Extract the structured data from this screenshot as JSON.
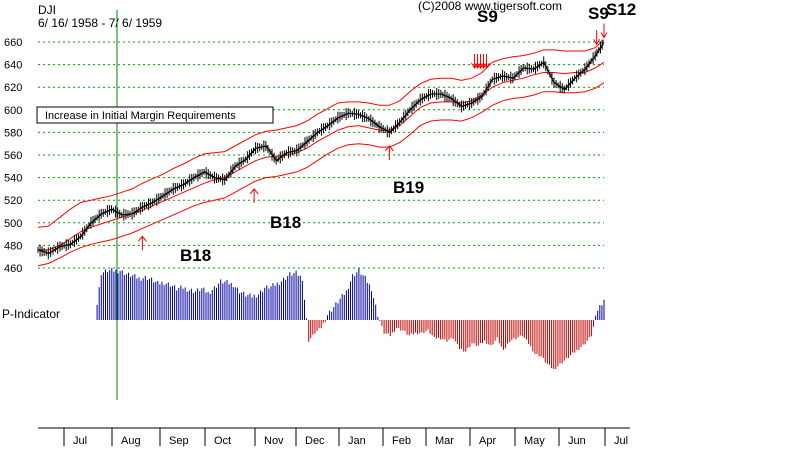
{
  "chart_data": {
    "type": "line",
    "title": "DJI",
    "subtitle": "6/ 16/ 1958 - 7/ 6/ 1959",
    "copyright": "(C)2008   www.tigersoft.com",
    "indicator_label": "P-Indicator",
    "annotation": "Increase in Initial Margin Requirements",
    "y_ticks": [
      460,
      480,
      500,
      520,
      540,
      560,
      580,
      600,
      620,
      640,
      660
    ],
    "ylim": [
      450,
      670
    ],
    "grid": true,
    "months": [
      "Jul",
      "Aug",
      "Sep",
      "Oct",
      "Nov",
      "Dec",
      "Jan",
      "Feb",
      "Mar",
      "Apr",
      "May",
      "Jun",
      "Jul"
    ],
    "vertical_marker_month": "Aug",
    "series": [
      {
        "name": "DJI",
        "x": [
          "1958-06-16",
          "1958-06-23",
          "1958-07-01",
          "1958-07-08",
          "1958-07-15",
          "1958-07-22",
          "1958-07-29",
          "1958-08-05",
          "1958-08-12",
          "1958-08-19",
          "1958-08-26",
          "1958-09-02",
          "1958-09-09",
          "1958-09-16",
          "1958-09-23",
          "1958-09-30",
          "1958-10-07",
          "1958-10-14",
          "1958-10-21",
          "1958-10-28",
          "1958-11-04",
          "1958-11-11",
          "1958-11-18",
          "1958-11-25",
          "1958-12-02",
          "1958-12-09",
          "1958-12-16",
          "1958-12-23",
          "1958-12-30",
          "1959-01-06",
          "1959-01-13",
          "1959-01-20",
          "1959-01-27",
          "1959-02-03",
          "1959-02-10",
          "1959-02-17",
          "1959-02-24",
          "1959-03-03",
          "1959-03-10",
          "1959-03-17",
          "1959-03-24",
          "1959-03-31",
          "1959-04-07",
          "1959-04-14",
          "1959-04-21",
          "1959-04-28",
          "1959-05-05",
          "1959-05-12",
          "1959-05-19",
          "1959-05-26",
          "1959-06-02",
          "1959-06-09",
          "1959-06-16",
          "1959-06-23",
          "1959-06-30",
          "1959-07-06"
        ],
        "values": [
          476,
          473,
          479,
          481,
          488,
          500,
          508,
          512,
          507,
          508,
          514,
          518,
          524,
          530,
          534,
          540,
          545,
          540,
          538,
          550,
          556,
          566,
          568,
          555,
          562,
          564,
          572,
          580,
          586,
          593,
          597,
          596,
          592,
          585,
          580,
          589,
          600,
          609,
          614,
          614,
          610,
          603,
          606,
          612,
          627,
          630,
          628,
          637,
          636,
          642,
          624,
          618,
          628,
          636,
          648,
          660
        ]
      },
      {
        "name": "Upper band",
        "values": [
          496,
          497,
          505,
          512,
          518,
          520,
          522,
          524,
          527,
          530,
          535,
          539,
          543,
          548,
          552,
          557,
          561,
          562,
          563,
          568,
          573,
          578,
          581,
          582,
          584,
          586,
          590,
          596,
          601,
          606,
          607,
          607,
          606,
          604,
          604,
          608,
          616,
          623,
          627,
          628,
          628,
          626,
          628,
          633,
          642,
          645,
          647,
          648,
          650,
          653,
          653,
          652,
          652,
          652,
          655,
          662
        ]
      },
      {
        "name": "Mid band",
        "values": [
          476,
          476,
          480,
          486,
          492,
          496,
          499,
          502,
          505,
          508,
          511,
          515,
          519,
          523,
          527,
          531,
          535,
          538,
          540,
          545,
          550,
          555,
          558,
          559,
          560,
          562,
          566,
          572,
          577,
          582,
          585,
          586,
          584,
          582,
          582,
          586,
          594,
          602,
          606,
          607,
          607,
          606,
          608,
          613,
          620,
          624,
          626,
          628,
          631,
          633,
          633,
          632,
          633,
          633,
          637,
          642
        ]
      },
      {
        "name": "Lower band",
        "values": [
          462,
          464,
          469,
          474,
          478,
          481,
          483,
          485,
          488,
          491,
          495,
          499,
          503,
          507,
          511,
          515,
          518,
          520,
          522,
          527,
          532,
          537,
          540,
          541,
          543,
          545,
          549,
          555,
          561,
          566,
          569,
          570,
          569,
          567,
          567,
          571,
          578,
          586,
          590,
          591,
          591,
          590,
          593,
          598,
          604,
          608,
          610,
          611,
          613,
          616,
          616,
          615,
          615,
          616,
          619,
          624
        ]
      }
    ],
    "p_indicator": {
      "values": [
        0,
        90,
        95,
        95,
        95,
        88,
        85,
        80,
        82,
        78,
        70,
        72,
        68,
        60,
        62,
        58,
        55,
        60,
        52,
        62,
        74,
        72,
        68,
        55,
        48,
        45,
        50,
        62,
        64,
        70,
        78,
        88,
        90,
        80,
        -40,
        -25,
        -15,
        10,
        25,
        40,
        55,
        85,
        95,
        80,
        60,
        10,
        -25,
        -30,
        -15,
        -20,
        -30,
        -25,
        -25,
        -20,
        -35,
        -35,
        -40,
        -35,
        -55,
        -60,
        -45,
        -50,
        -40,
        -50,
        -35,
        -60,
        -40,
        -35,
        -30,
        -45,
        -65,
        -70,
        -85,
        -95,
        -85,
        -75,
        -65,
        -55,
        -45,
        -30,
        20,
        40
      ],
      "min": -100,
      "max": 100
    },
    "signals": [
      {
        "label": "B18",
        "date": "1958-08-26",
        "value": 488,
        "direction": "up"
      },
      {
        "label": "B18",
        "date": "1958-11-10",
        "value": 530,
        "direction": "up"
      },
      {
        "label": "B19",
        "date": "1959-02-10",
        "value": 568,
        "direction": "up"
      },
      {
        "label": "S9",
        "date": "1959-04-13",
        "value": 637,
        "direction": "down"
      },
      {
        "label": "S9",
        "date": "1959-07-01",
        "value": 658,
        "direction": "down"
      },
      {
        "label": "S12",
        "date": "1959-07-06",
        "value": 664,
        "direction": "down"
      }
    ],
    "colors": {
      "price": "#000000",
      "bands": "#ff0000",
      "grid": "#00a000",
      "marker": "#008000",
      "p_positive": "#0000a0",
      "p_negative": "#c00000",
      "arrows": "#ff0000",
      "axis": "#000000"
    }
  }
}
